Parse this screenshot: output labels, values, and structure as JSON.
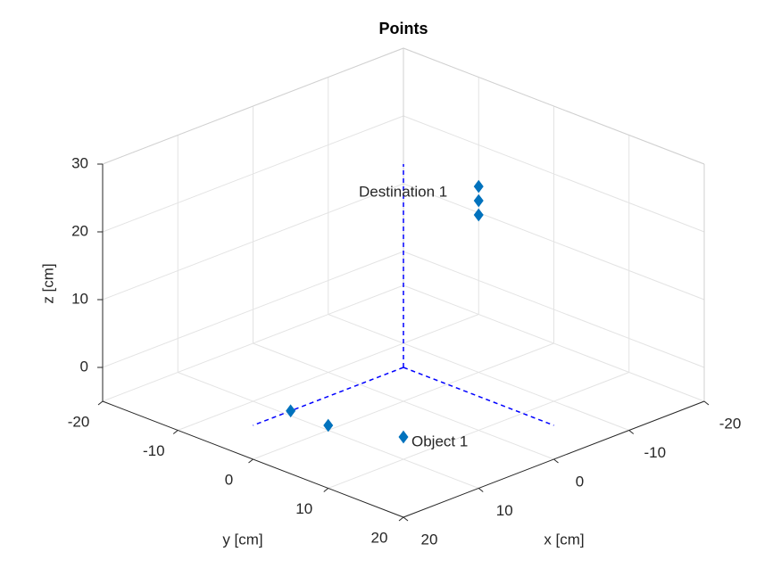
{
  "chart_data": {
    "type": "scatter3d",
    "title": "Points",
    "xlabel": "x [cm]",
    "ylabel": "y [cm]",
    "zlabel": "z [cm]",
    "xlim": [
      -20,
      20
    ],
    "ylim": [
      -20,
      20
    ],
    "zlim": [
      -5,
      30
    ],
    "xticks": [
      -20,
      -10,
      0,
      10,
      20
    ],
    "yticks": [
      -20,
      -10,
      0,
      10,
      20
    ],
    "zticks": [
      0,
      10,
      20,
      30
    ],
    "grid": true,
    "frame": {
      "color": "#0000ff",
      "x": [
        0,
        20
      ],
      "y": [
        0,
        20
      ],
      "z": [
        0,
        30
      ]
    },
    "series": [
      {
        "color": "#0072bd",
        "x": [
          15,
          15,
          12
        ],
        "y": [
          0,
          5,
          12
        ],
        "z": [
          0,
          0,
          0
        ]
      },
      {
        "color": "#0072bd",
        "x": [
          -5,
          -5,
          -5
        ],
        "y": [
          5,
          5,
          5
        ],
        "z": [
          26.7,
          24.6,
          22.5
        ]
      }
    ],
    "annotations": [
      {
        "text": "Destination 1",
        "series": 1
      },
      {
        "text": "Object 1",
        "series": 0
      }
    ]
  }
}
